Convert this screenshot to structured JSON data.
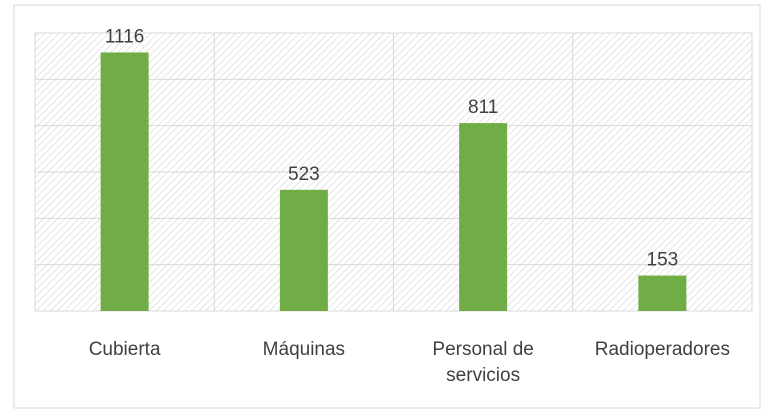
{
  "chart_data": {
    "type": "bar",
    "categories": [
      "Cubierta",
      "Máquinas",
      "Personal de servicios",
      "Radioperadores"
    ],
    "values": [
      1116,
      523,
      811,
      153
    ],
    "color": "#70ad47",
    "ylim": [
      0,
      1200
    ],
    "yticks": [
      0,
      200,
      400,
      600,
      800,
      1000,
      1200
    ],
    "grid": true
  }
}
